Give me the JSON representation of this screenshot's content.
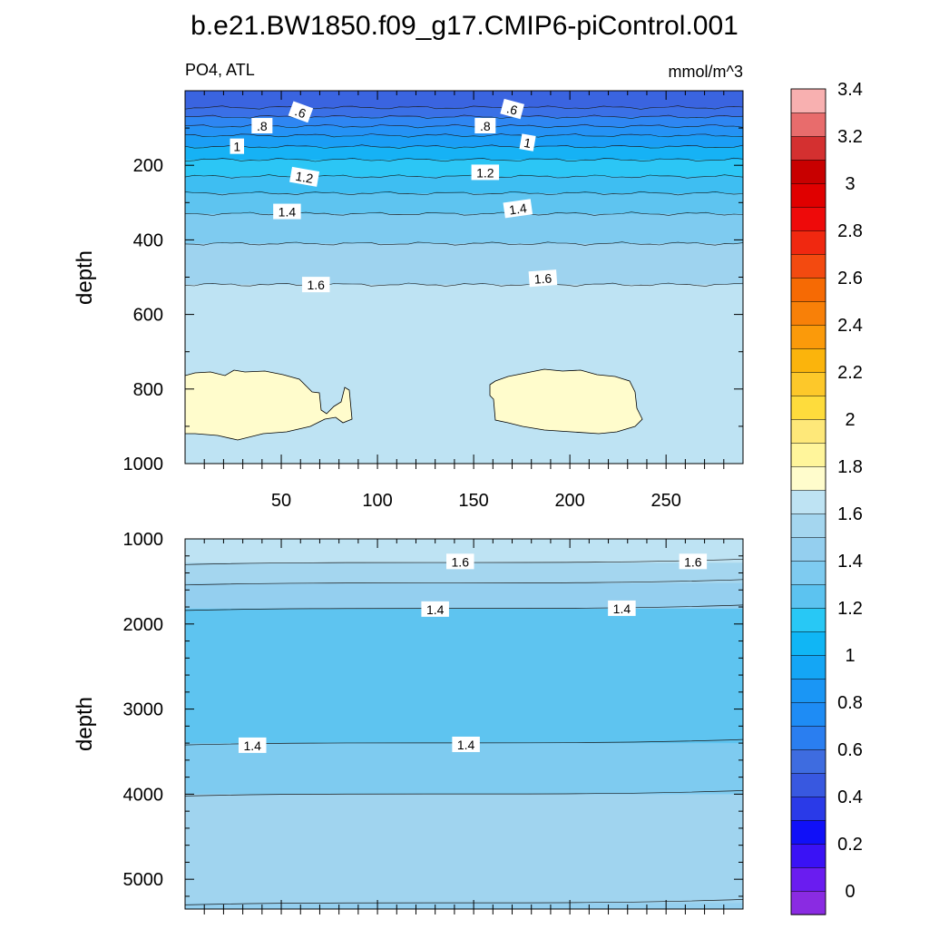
{
  "title": "b.e21.BW1850.f09_g17.CMIP6-piControl.001",
  "chart_data": [
    {
      "type": "heatmap",
      "variable": "PO4",
      "basin": "ATL",
      "left_label": "PO4, ATL",
      "units": "mmol/m^3",
      "ylabel": "depth",
      "xlabel": "",
      "xlim": [
        0,
        290
      ],
      "ylim": [
        1000,
        0
      ],
      "y_reversed": true,
      "xticks": [
        50,
        100,
        150,
        200,
        250
      ],
      "yticks": [
        200,
        400,
        600,
        800,
        1000
      ],
      "contour_levels": [
        0.6,
        0.7,
        0.8,
        0.9,
        1.0,
        1.1,
        1.2,
        1.3,
        1.4,
        1.5,
        1.6,
        1.7
      ],
      "contour_depths": [
        45,
        70,
        95,
        120,
        150,
        185,
        230,
        275,
        330,
        410,
        520
      ],
      "max_region": "1.7 - 1.8 patches at about 760-930 m depth, x 0-87 and x 160-237",
      "contour_labels": [
        {
          "text": ".6",
          "x": 60,
          "y": 58
        },
        {
          "text": ".8",
          "x": 40,
          "y": 95
        },
        {
          "text": "1",
          "x": 27,
          "y": 150
        },
        {
          "text": "1.2",
          "x": 62,
          "y": 232
        },
        {
          "text": "1.4",
          "x": 53,
          "y": 325
        },
        {
          "text": "1.6",
          "x": 68,
          "y": 521
        },
        {
          "text": ".6",
          "x": 170,
          "y": 50
        },
        {
          "text": ".8",
          "x": 156,
          "y": 95
        },
        {
          "text": "1",
          "x": 178,
          "y": 140
        },
        {
          "text": "1.2",
          "x": 156,
          "y": 220
        },
        {
          "text": "1.4",
          "x": 173,
          "y": 317
        },
        {
          "text": "1.6",
          "x": 186,
          "y": 504
        }
      ]
    },
    {
      "type": "heatmap",
      "variable": "PO4",
      "basin": "ATL",
      "ylabel": "depth",
      "xlabel": "",
      "xlim": [
        0,
        290
      ],
      "ylim": [
        5350,
        1000
      ],
      "y_reversed": true,
      "yticks": [
        1000,
        2000,
        3000,
        4000,
        5000
      ],
      "contour_labels": [
        {
          "text": "1.6",
          "x": 143,
          "y": 1270
        },
        {
          "text": "1.6",
          "x": 264,
          "y": 1270
        },
        {
          "text": "1.4",
          "x": 130,
          "y": 1830
        },
        {
          "text": "1.4",
          "x": 227,
          "y": 1820
        },
        {
          "text": "1.4",
          "x": 35,
          "y": 3430
        },
        {
          "text": "1.4",
          "x": 146,
          "y": 3420
        }
      ]
    }
  ],
  "colorbar": {
    "labels": [
      "0",
      "0.2",
      "0.4",
      "0.6",
      "0.8",
      "1",
      "1.2",
      "1.4",
      "1.6",
      "1.8",
      "2",
      "2.2",
      "2.4",
      "2.6",
      "2.8",
      "3",
      "3.2",
      "3.4"
    ],
    "colors": [
      "#8a2be2",
      "#6a1cf0",
      "#3a12f5",
      "#1010f8",
      "#2a3ae8",
      "#3858e0",
      "#3e6ce0",
      "#2a7ef0",
      "#1e8cf5",
      "#1a96f5",
      "#14a6f5",
      "#10b6f5",
      "#28c8f5",
      "#5cc3f0",
      "#7ecbf0",
      "#94cfef",
      "#a4d6ef",
      "#bee3f3",
      "#fffccc",
      "#fff59b",
      "#fee879",
      "#fedc3c",
      "#fdc82a",
      "#fbb40c",
      "#fb9a0a",
      "#f88008",
      "#f66a04",
      "#f34a10",
      "#f02810",
      "#ee0a0a",
      "#e00000",
      "#c80000",
      "#d43030",
      "#e86c6c",
      "#f8b0b0"
    ]
  }
}
